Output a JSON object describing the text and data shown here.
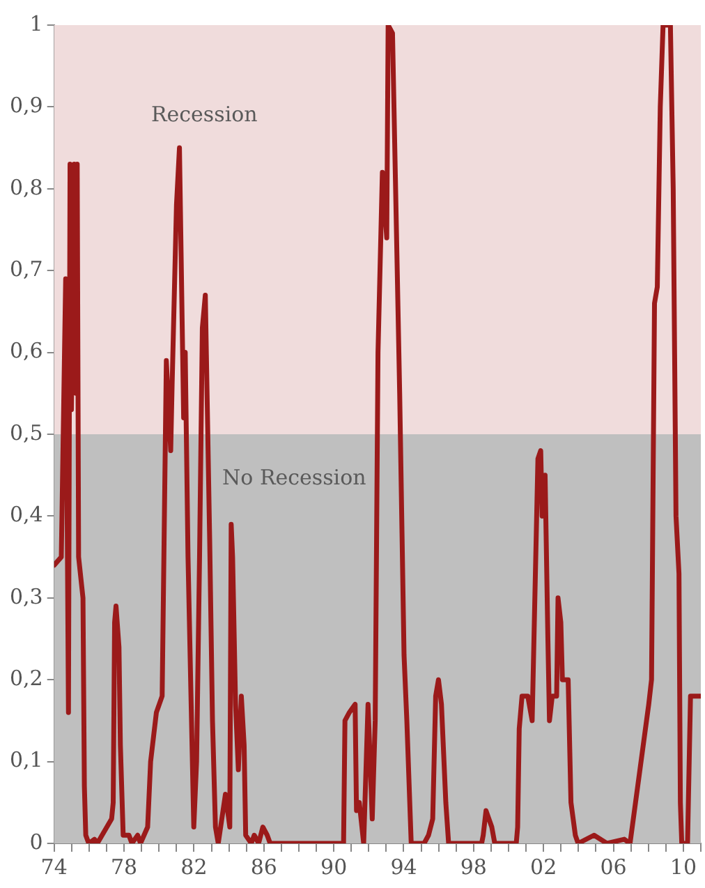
{
  "chart_data": {
    "type": "line",
    "x": [
      1974,
      1974.41,
      1974.66,
      1974.82,
      1974.91,
      1974.99,
      1975.15,
      1975.24,
      1975.32,
      1975.4,
      1975.65,
      1975.73,
      1975.81,
      1975.98,
      1976.31,
      1976.47,
      1977.29,
      1977.38,
      1977.46,
      1977.54,
      1977.71,
      1977.79,
      1977.95,
      1978.28,
      1978.45,
      1978.78,
      1978.94,
      1979.35,
      1979.52,
      1979.85,
      1980.18,
      1980.42,
      1980.67,
      1980.75,
      1981,
      1981.17,
      1981.41,
      1981.5,
      1981.66,
      1981.99,
      1982.15,
      1982.32,
      1982.48,
      1982.65,
      1982.9,
      1983.06,
      1983.23,
      1983.39,
      1983.8,
      1984.05,
      1984.13,
      1984.21,
      1984.38,
      1984.54,
      1984.71,
      1984.87,
      1984.96,
      1985.28,
      1985.45,
      1985.7,
      1985.94,
      1986.19,
      1986.36,
      1990.56,
      1990.64,
      1990.89,
      1991.22,
      1991.3,
      1991.46,
      1991.71,
      1991.96,
      1992.2,
      1992.37,
      1992.53,
      1992.78,
      1993.03,
      1993.11,
      1993.36,
      1993.77,
      1994.02,
      1994.18,
      1994.43,
      1995.17,
      1995.42,
      1995.66,
      1995.83,
      1995.99,
      1996.16,
      1996.41,
      1996.57,
      1998.46,
      1998.55,
      1998.71,
      1999.04,
      1999.21,
      2000.44,
      2000.52,
      2000.61,
      2000.77,
      2001.1,
      2001.35,
      2001.68,
      2001.84,
      2001.92,
      2002.09,
      2002.25,
      2002.34,
      2002.5,
      2002.75,
      2002.83,
      2002.99,
      2003.08,
      2003.41,
      2003.57,
      2003.82,
      2003.98,
      2004.89,
      2005.63,
      2006.62,
      2006.95,
      2008.02,
      2008.18,
      2008.35,
      2008.51,
      2008.68,
      2008.84,
      2009.26,
      2009.42,
      2009.58,
      2009.75,
      2009.83,
      2009.91,
      2010.24,
      2010.41,
      2011
    ],
    "series": [
      {
        "color": "#9b1a1a",
        "values": [
          0.34,
          0.35,
          0.69,
          0.16,
          0.83,
          0.53,
          0.83,
          0.55,
          0.83,
          0.35,
          0.3,
          0.07,
          0.01,
          0,
          0.005,
          0,
          0.03,
          0.05,
          0.27,
          0.29,
          0.24,
          0.12,
          0.01,
          0.01,
          0,
          0.01,
          0,
          0.02,
          0.1,
          0.16,
          0.18,
          0.59,
          0.48,
          0.56,
          0.78,
          0.85,
          0.52,
          0.6,
          0.35,
          0.02,
          0.1,
          0.35,
          0.63,
          0.67,
          0.37,
          0.15,
          0.02,
          0,
          0.06,
          0.02,
          0.39,
          0.35,
          0.17,
          0.09,
          0.18,
          0.12,
          0.01,
          0,
          0.01,
          0,
          0.02,
          0.01,
          0,
          0,
          0.15,
          0.16,
          0.17,
          0.04,
          0.05,
          0,
          0.17,
          0.03,
          0.15,
          0.6,
          0.82,
          0.74,
          1,
          0.99,
          0.55,
          0.23,
          0.15,
          0,
          0,
          0.01,
          0.03,
          0.18,
          0.2,
          0.17,
          0.05,
          0,
          0,
          0.01,
          0.04,
          0.02,
          0,
          0,
          0.02,
          0.14,
          0.18,
          0.18,
          0.15,
          0.47,
          0.48,
          0.4,
          0.45,
          0.25,
          0.15,
          0.18,
          0.18,
          0.3,
          0.27,
          0.2,
          0.2,
          0.05,
          0.01,
          0,
          0.01,
          0,
          0.005,
          0,
          0.17,
          0.2,
          0.66,
          0.68,
          0.9,
          1,
          1,
          0.8,
          0.4,
          0.33,
          0.05,
          0,
          0,
          0.18,
          0.18
        ]
      }
    ],
    "xlim": [
      1974,
      2011
    ],
    "xticks": [
      {
        "value": 1974,
        "label": "74"
      },
      {
        "value": 1975,
        "label": null
      },
      {
        "value": 1976,
        "label": null
      },
      {
        "value": 1977,
        "label": null
      },
      {
        "value": 1978,
        "label": "78"
      },
      {
        "value": 1979,
        "label": null
      },
      {
        "value": 1980,
        "label": null
      },
      {
        "value": 1981,
        "label": null
      },
      {
        "value": 1982,
        "label": "82"
      },
      {
        "value": 1983,
        "label": null
      },
      {
        "value": 1984,
        "label": null
      },
      {
        "value": 1985,
        "label": null
      },
      {
        "value": 1986,
        "label": "86"
      },
      {
        "value": 1987,
        "label": null
      },
      {
        "value": 1988,
        "label": null
      },
      {
        "value": 1989,
        "label": null
      },
      {
        "value": 1990,
        "label": "90"
      },
      {
        "value": 1991,
        "label": null
      },
      {
        "value": 1992,
        "label": null
      },
      {
        "value": 1993,
        "label": null
      },
      {
        "value": 1994,
        "label": "94"
      },
      {
        "value": 1995,
        "label": null
      },
      {
        "value": 1996,
        "label": null
      },
      {
        "value": 1997,
        "label": null
      },
      {
        "value": 1998,
        "label": "98"
      },
      {
        "value": 1999,
        "label": null
      },
      {
        "value": 2000,
        "label": null
      },
      {
        "value": 2001,
        "label": null
      },
      {
        "value": 2002,
        "label": "02"
      },
      {
        "value": 2003,
        "label": null
      },
      {
        "value": 2004,
        "label": null
      },
      {
        "value": 2005,
        "label": null
      },
      {
        "value": 2006,
        "label": "06"
      },
      {
        "value": 2007,
        "label": null
      },
      {
        "value": 2008,
        "label": null
      },
      {
        "value": 2009,
        "label": null
      },
      {
        "value": 2010,
        "label": "10"
      },
      {
        "value": 2011,
        "label": null
      }
    ],
    "ylim": [
      0,
      1
    ],
    "yticks": [
      0,
      {
        "value": 0.1,
        "label": "0,1"
      },
      {
        "value": 0.2,
        "label": "0,2"
      },
      {
        "value": 0.3,
        "label": "0,3"
      },
      {
        "value": 0.4,
        "label": "0,4"
      },
      {
        "value": 0.5,
        "label": "0,5"
      },
      {
        "value": 0.6,
        "label": "0,6"
      },
      {
        "value": 0.7,
        "label": "0,7"
      },
      {
        "value": 0.8,
        "label": "0,8"
      },
      {
        "value": 0.9,
        "label": "0,9"
      },
      1
    ],
    "bands": [
      {
        "axis": "y",
        "from": 0.5,
        "to": 1,
        "label": "Recession",
        "color": "#f0dcdc"
      },
      {
        "axis": "y",
        "from": 0,
        "to": 0.5,
        "label": "No Recession",
        "color": "#bfbfbf"
      }
    ],
    "grid": false,
    "legend": false,
    "marker": "none",
    "line_style": "solid"
  }
}
